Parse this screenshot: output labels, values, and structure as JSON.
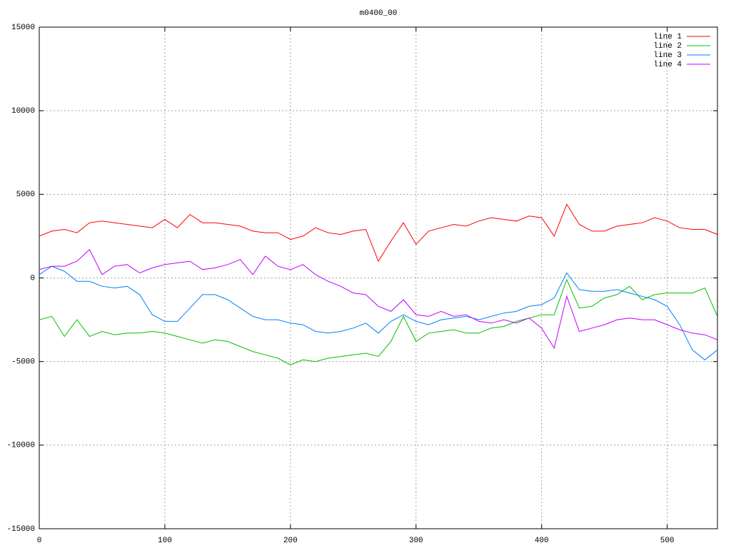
{
  "chart_data": {
    "type": "line",
    "title": "m0400_00",
    "x": [
      0,
      10,
      20,
      30,
      40,
      50,
      60,
      70,
      80,
      90,
      100,
      110,
      120,
      130,
      140,
      150,
      160,
      170,
      180,
      190,
      200,
      210,
      220,
      230,
      240,
      250,
      260,
      270,
      280,
      290,
      300,
      310,
      320,
      330,
      340,
      350,
      360,
      370,
      380,
      390,
      400,
      410,
      420,
      430,
      440,
      450,
      460,
      470,
      480,
      490,
      500,
      510,
      520,
      530,
      540
    ],
    "series": [
      {
        "name": "line 1",
        "color": "#ff0000",
        "values": [
          2500,
          2800,
          2900,
          2700,
          3300,
          3400,
          3300,
          3200,
          3100,
          3000,
          3500,
          3000,
          3800,
          3300,
          3300,
          3200,
          3100,
          2800,
          2700,
          2700,
          2300,
          2500,
          3000,
          2700,
          2600,
          2800,
          2900,
          1000,
          2200,
          3300,
          2000,
          2800,
          3000,
          3200,
          3100,
          3400,
          3600,
          3500,
          3400,
          3700,
          3600,
          2500,
          4400,
          3200,
          2800,
          2800,
          3100,
          3200,
          3300,
          3600,
          3400,
          3000,
          2900,
          2900,
          2600
        ]
      },
      {
        "name": "line 2",
        "color": "#00c000",
        "values": [
          -2500,
          -2300,
          -3500,
          -2500,
          -3500,
          -3200,
          -3400,
          -3300,
          -3300,
          -3200,
          -3300,
          -3500,
          -3700,
          -3900,
          -3700,
          -3800,
          -4100,
          -4400,
          -4600,
          -4800,
          -5200,
          -4900,
          -5000,
          -4800,
          -4700,
          -4600,
          -4500,
          -4700,
          -3800,
          -2300,
          -3800,
          -3300,
          -3200,
          -3100,
          -3300,
          -3300,
          -3000,
          -2900,
          -2600,
          -2400,
          -2200,
          -2200,
          -100,
          -1800,
          -1700,
          -1200,
          -1000,
          -500,
          -1300,
          -1000,
          -900,
          -900,
          -900,
          -600,
          -2300
        ]
      },
      {
        "name": "line 3",
        "color": "#0080ff",
        "values": [
          200,
          700,
          400,
          -200,
          -200,
          -500,
          -600,
          -500,
          -1000,
          -2200,
          -2600,
          -2600,
          -1800,
          -1000,
          -1000,
          -1300,
          -1800,
          -2300,
          -2500,
          -2500,
          -2700,
          -2800,
          -3200,
          -3300,
          -3200,
          -3000,
          -2700,
          -3300,
          -2600,
          -2200,
          -2600,
          -2800,
          -2500,
          -2400,
          -2300,
          -2500,
          -2300,
          -2100,
          -2000,
          -1700,
          -1600,
          -1200,
          300,
          -700,
          -800,
          -800,
          -700,
          -900,
          -1100,
          -1300,
          -1700,
          -2800,
          -4300,
          -4900,
          -4300
        ]
      },
      {
        "name": "line 4",
        "color": "#c000ff",
        "values": [
          500,
          700,
          700,
          1000,
          1700,
          200,
          700,
          800,
          300,
          600,
          800,
          900,
          1000,
          500,
          600,
          800,
          1100,
          200,
          1300,
          700,
          500,
          800,
          200,
          -200,
          -500,
          -900,
          -1000,
          -1700,
          -2000,
          -1300,
          -2200,
          -2300,
          -2000,
          -2300,
          -2200,
          -2600,
          -2700,
          -2500,
          -2700,
          -2400,
          -3000,
          -4200,
          -1100,
          -3200,
          -3000,
          -2800,
          -2500,
          -2400,
          -2500,
          -2500,
          -2800,
          -3100,
          -3300,
          -3400,
          -3700
        ]
      }
    ],
    "xlim": [
      0,
      540
    ],
    "xticks": [
      0,
      100,
      200,
      300,
      400,
      500
    ],
    "ylim": [
      -15000,
      15000
    ],
    "yticks": [
      -15000,
      -10000,
      -5000,
      0,
      5000,
      10000,
      15000
    ],
    "grid": true,
    "legend": "top-right"
  }
}
